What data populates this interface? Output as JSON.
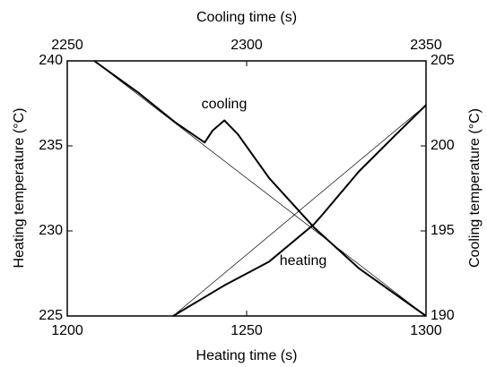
{
  "chart_data": {
    "type": "line",
    "xlabel": "Heating time (s)",
    "x2label": "Cooling time (s)",
    "ylabel": "Heating temperature (°C)",
    "y2label": "Cooling temperature (°C)",
    "xlim": [
      1200,
      1300
    ],
    "xticks": [
      1200,
      1250,
      1300
    ],
    "x2lim": [
      2250,
      2350
    ],
    "x2ticks": [
      2250,
      2300,
      2350
    ],
    "ylim": [
      225,
      240
    ],
    "yticks": [
      225,
      230,
      235,
      240
    ],
    "y2lim": [
      190,
      205
    ],
    "y2ticks": [
      190,
      195,
      200,
      205
    ],
    "series": [
      {
        "name": "cooling",
        "color": "#000000",
        "linewidth": 2,
        "xaxis": "x2",
        "axis": "y2",
        "x": [
          2257.5,
          2270,
          2280,
          2288.3,
          2290.5,
          2293.8,
          2297.5,
          2306.3,
          2318.8,
          2331.3,
          2350
        ],
        "values": [
          205,
          203.1,
          201.4,
          200.2,
          200.9,
          201.5,
          200.7,
          198.1,
          195.2,
          192.8,
          190
        ]
      },
      {
        "color": "#000000",
        "linewidth": 0.7,
        "xaxis": "x2",
        "axis": "y2",
        "x": [
          2257.5,
          2350
        ],
        "values": [
          205,
          190
        ]
      },
      {
        "name": "heating",
        "color": "#000000",
        "linewidth": 2,
        "x": [
          1229.5,
          1243.8,
          1256.3,
          1268.8,
          1271.3,
          1281.3,
          1291.3,
          1300
        ],
        "values": [
          225,
          226.8,
          228.2,
          230.4,
          231,
          233.5,
          235.6,
          237.4
        ]
      },
      {
        "color": "#000000",
        "linewidth": 0.7,
        "x": [
          1229.5,
          1300
        ],
        "values": [
          225,
          237.4
        ]
      }
    ]
  }
}
